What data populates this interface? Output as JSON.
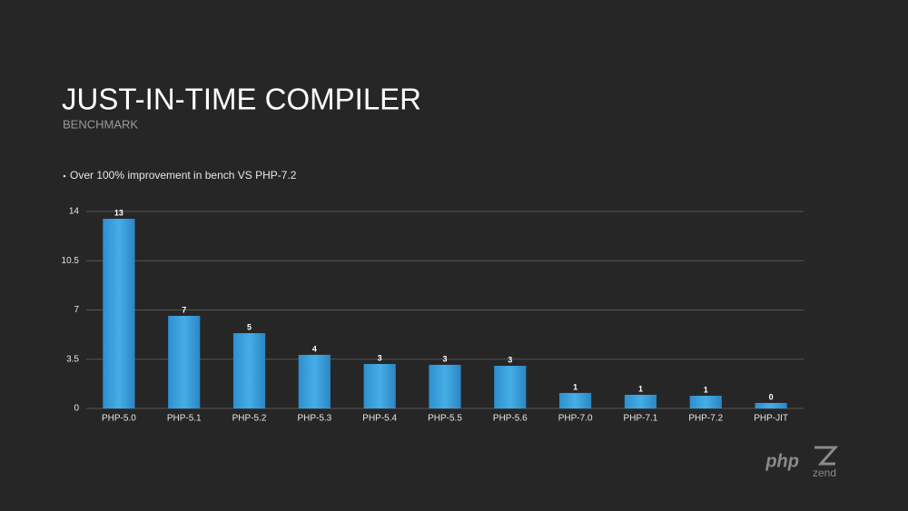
{
  "chart_data": {
    "type": "bar",
    "title": "JUST-IN-TIME COMPILER",
    "subtitle": "BENCHMARK",
    "annotation": "Over 100% improvement in bench VS PHP-7.2",
    "categories": [
      "PHP-5.0",
      "PHP-5.1",
      "PHP-5.2",
      "PHP-5.3",
      "PHP-5.4",
      "PHP-5.5",
      "PHP-5.6",
      "PHP-7.0",
      "PHP-7.1",
      "PHP-7.2",
      "PHP-JIT"
    ],
    "values": [
      13.48,
      6.58,
      5.35,
      3.81,
      3.16,
      3.1,
      3.03,
      1.1,
      0.97,
      0.9,
      0.39
    ],
    "value_labels": [
      "13",
      "7",
      "5",
      "4",
      "3",
      "3",
      "3",
      "1",
      "1",
      "1",
      "0"
    ],
    "color": "#3a9fdc",
    "ylim": [
      0,
      14
    ],
    "yticks": [
      0,
      3.5,
      7,
      10.5,
      14
    ],
    "grid": true
  },
  "branding": {
    "php": "php",
    "zend": "zend"
  }
}
